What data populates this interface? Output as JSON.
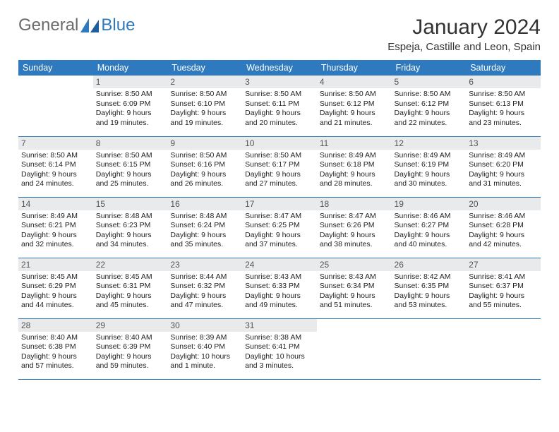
{
  "logo": {
    "text1": "General",
    "text2": "Blue",
    "text1_color": "#6b6b6b",
    "text2_color": "#2f7abf"
  },
  "title": "January 2024",
  "location": "Espeja, Castille and Leon, Spain",
  "colors": {
    "header_bg": "#2f7abf",
    "header_text": "#ffffff",
    "daynum_bg": "#e9eaeb",
    "row_border": "#2f7abf",
    "body_text": "#222222"
  },
  "weekdays": [
    "Sunday",
    "Monday",
    "Tuesday",
    "Wednesday",
    "Thursday",
    "Friday",
    "Saturday"
  ],
  "weeks": [
    [
      {
        "empty": true
      },
      {
        "n": "1",
        "sr": "8:50 AM",
        "ss": "6:09 PM",
        "dl": "9 hours and 19 minutes."
      },
      {
        "n": "2",
        "sr": "8:50 AM",
        "ss": "6:10 PM",
        "dl": "9 hours and 19 minutes."
      },
      {
        "n": "3",
        "sr": "8:50 AM",
        "ss": "6:11 PM",
        "dl": "9 hours and 20 minutes."
      },
      {
        "n": "4",
        "sr": "8:50 AM",
        "ss": "6:12 PM",
        "dl": "9 hours and 21 minutes."
      },
      {
        "n": "5",
        "sr": "8:50 AM",
        "ss": "6:12 PM",
        "dl": "9 hours and 22 minutes."
      },
      {
        "n": "6",
        "sr": "8:50 AM",
        "ss": "6:13 PM",
        "dl": "9 hours and 23 minutes."
      }
    ],
    [
      {
        "n": "7",
        "sr": "8:50 AM",
        "ss": "6:14 PM",
        "dl": "9 hours and 24 minutes."
      },
      {
        "n": "8",
        "sr": "8:50 AM",
        "ss": "6:15 PM",
        "dl": "9 hours and 25 minutes."
      },
      {
        "n": "9",
        "sr": "8:50 AM",
        "ss": "6:16 PM",
        "dl": "9 hours and 26 minutes."
      },
      {
        "n": "10",
        "sr": "8:50 AM",
        "ss": "6:17 PM",
        "dl": "9 hours and 27 minutes."
      },
      {
        "n": "11",
        "sr": "8:49 AM",
        "ss": "6:18 PM",
        "dl": "9 hours and 28 minutes."
      },
      {
        "n": "12",
        "sr": "8:49 AM",
        "ss": "6:19 PM",
        "dl": "9 hours and 30 minutes."
      },
      {
        "n": "13",
        "sr": "8:49 AM",
        "ss": "6:20 PM",
        "dl": "9 hours and 31 minutes."
      }
    ],
    [
      {
        "n": "14",
        "sr": "8:49 AM",
        "ss": "6:21 PM",
        "dl": "9 hours and 32 minutes."
      },
      {
        "n": "15",
        "sr": "8:48 AM",
        "ss": "6:23 PM",
        "dl": "9 hours and 34 minutes."
      },
      {
        "n": "16",
        "sr": "8:48 AM",
        "ss": "6:24 PM",
        "dl": "9 hours and 35 minutes."
      },
      {
        "n": "17",
        "sr": "8:47 AM",
        "ss": "6:25 PM",
        "dl": "9 hours and 37 minutes."
      },
      {
        "n": "18",
        "sr": "8:47 AM",
        "ss": "6:26 PM",
        "dl": "9 hours and 38 minutes."
      },
      {
        "n": "19",
        "sr": "8:46 AM",
        "ss": "6:27 PM",
        "dl": "9 hours and 40 minutes."
      },
      {
        "n": "20",
        "sr": "8:46 AM",
        "ss": "6:28 PM",
        "dl": "9 hours and 42 minutes."
      }
    ],
    [
      {
        "n": "21",
        "sr": "8:45 AM",
        "ss": "6:29 PM",
        "dl": "9 hours and 44 minutes."
      },
      {
        "n": "22",
        "sr": "8:45 AM",
        "ss": "6:31 PM",
        "dl": "9 hours and 45 minutes."
      },
      {
        "n": "23",
        "sr": "8:44 AM",
        "ss": "6:32 PM",
        "dl": "9 hours and 47 minutes."
      },
      {
        "n": "24",
        "sr": "8:43 AM",
        "ss": "6:33 PM",
        "dl": "9 hours and 49 minutes."
      },
      {
        "n": "25",
        "sr": "8:43 AM",
        "ss": "6:34 PM",
        "dl": "9 hours and 51 minutes."
      },
      {
        "n": "26",
        "sr": "8:42 AM",
        "ss": "6:35 PM",
        "dl": "9 hours and 53 minutes."
      },
      {
        "n": "27",
        "sr": "8:41 AM",
        "ss": "6:37 PM",
        "dl": "9 hours and 55 minutes."
      }
    ],
    [
      {
        "n": "28",
        "sr": "8:40 AM",
        "ss": "6:38 PM",
        "dl": "9 hours and 57 minutes."
      },
      {
        "n": "29",
        "sr": "8:40 AM",
        "ss": "6:39 PM",
        "dl": "9 hours and 59 minutes."
      },
      {
        "n": "30",
        "sr": "8:39 AM",
        "ss": "6:40 PM",
        "dl": "10 hours and 1 minute."
      },
      {
        "n": "31",
        "sr": "8:38 AM",
        "ss": "6:41 PM",
        "dl": "10 hours and 3 minutes."
      },
      {
        "empty": true
      },
      {
        "empty": true
      },
      {
        "empty": true
      }
    ]
  ],
  "labels": {
    "sunrise": "Sunrise:",
    "sunset": "Sunset:",
    "daylight": "Daylight:"
  }
}
